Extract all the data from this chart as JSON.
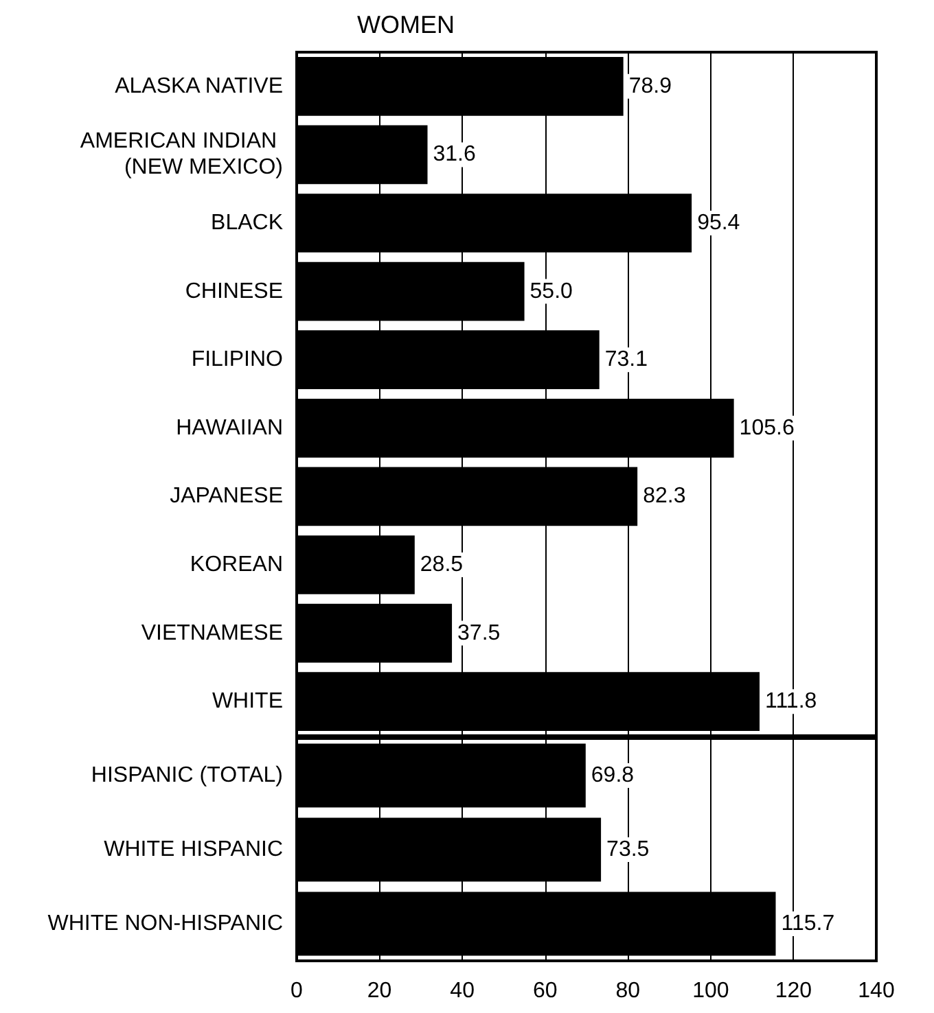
{
  "chart_data": [
    {
      "type": "bar",
      "orientation": "horizontal",
      "title": "WOMEN",
      "categories": [
        "ALASKA NATIVE",
        "AMERICAN INDIAN (NEW MEXICO)",
        "BLACK",
        "CHINESE",
        "FILIPINO",
        "HAWAIIAN",
        "JAPANESE",
        "KOREAN",
        "VIETNAMESE",
        "WHITE"
      ],
      "values": [
        78.9,
        31.6,
        95.4,
        55.0,
        73.1,
        105.6,
        82.3,
        28.5,
        37.5,
        111.8
      ],
      "value_labels": [
        "78.9",
        "31.6",
        "95.4",
        "55.0",
        "73.1",
        "105.6",
        "82.3",
        "28.5",
        "37.5",
        "111.8"
      ],
      "color": "#000000",
      "xlim": [
        0,
        140
      ],
      "xticks": [
        0,
        20,
        40,
        60,
        80,
        100,
        120,
        140
      ],
      "grid": "x",
      "tick_labels": "y"
    },
    {
      "type": "bar",
      "orientation": "horizontal",
      "categories": [
        "HISPANIC (TOTAL)",
        "WHITE HISPANIC",
        "WHITE NON-HISPANIC"
      ],
      "values": [
        69.8,
        73.5,
        115.7
      ],
      "value_labels": [
        "69.8",
        "73.5",
        "115.7"
      ],
      "color": "#000000",
      "xlim": [
        0,
        140
      ],
      "xticks": [
        0,
        20,
        40,
        60,
        80,
        100,
        120,
        140
      ],
      "grid": "x"
    }
  ]
}
